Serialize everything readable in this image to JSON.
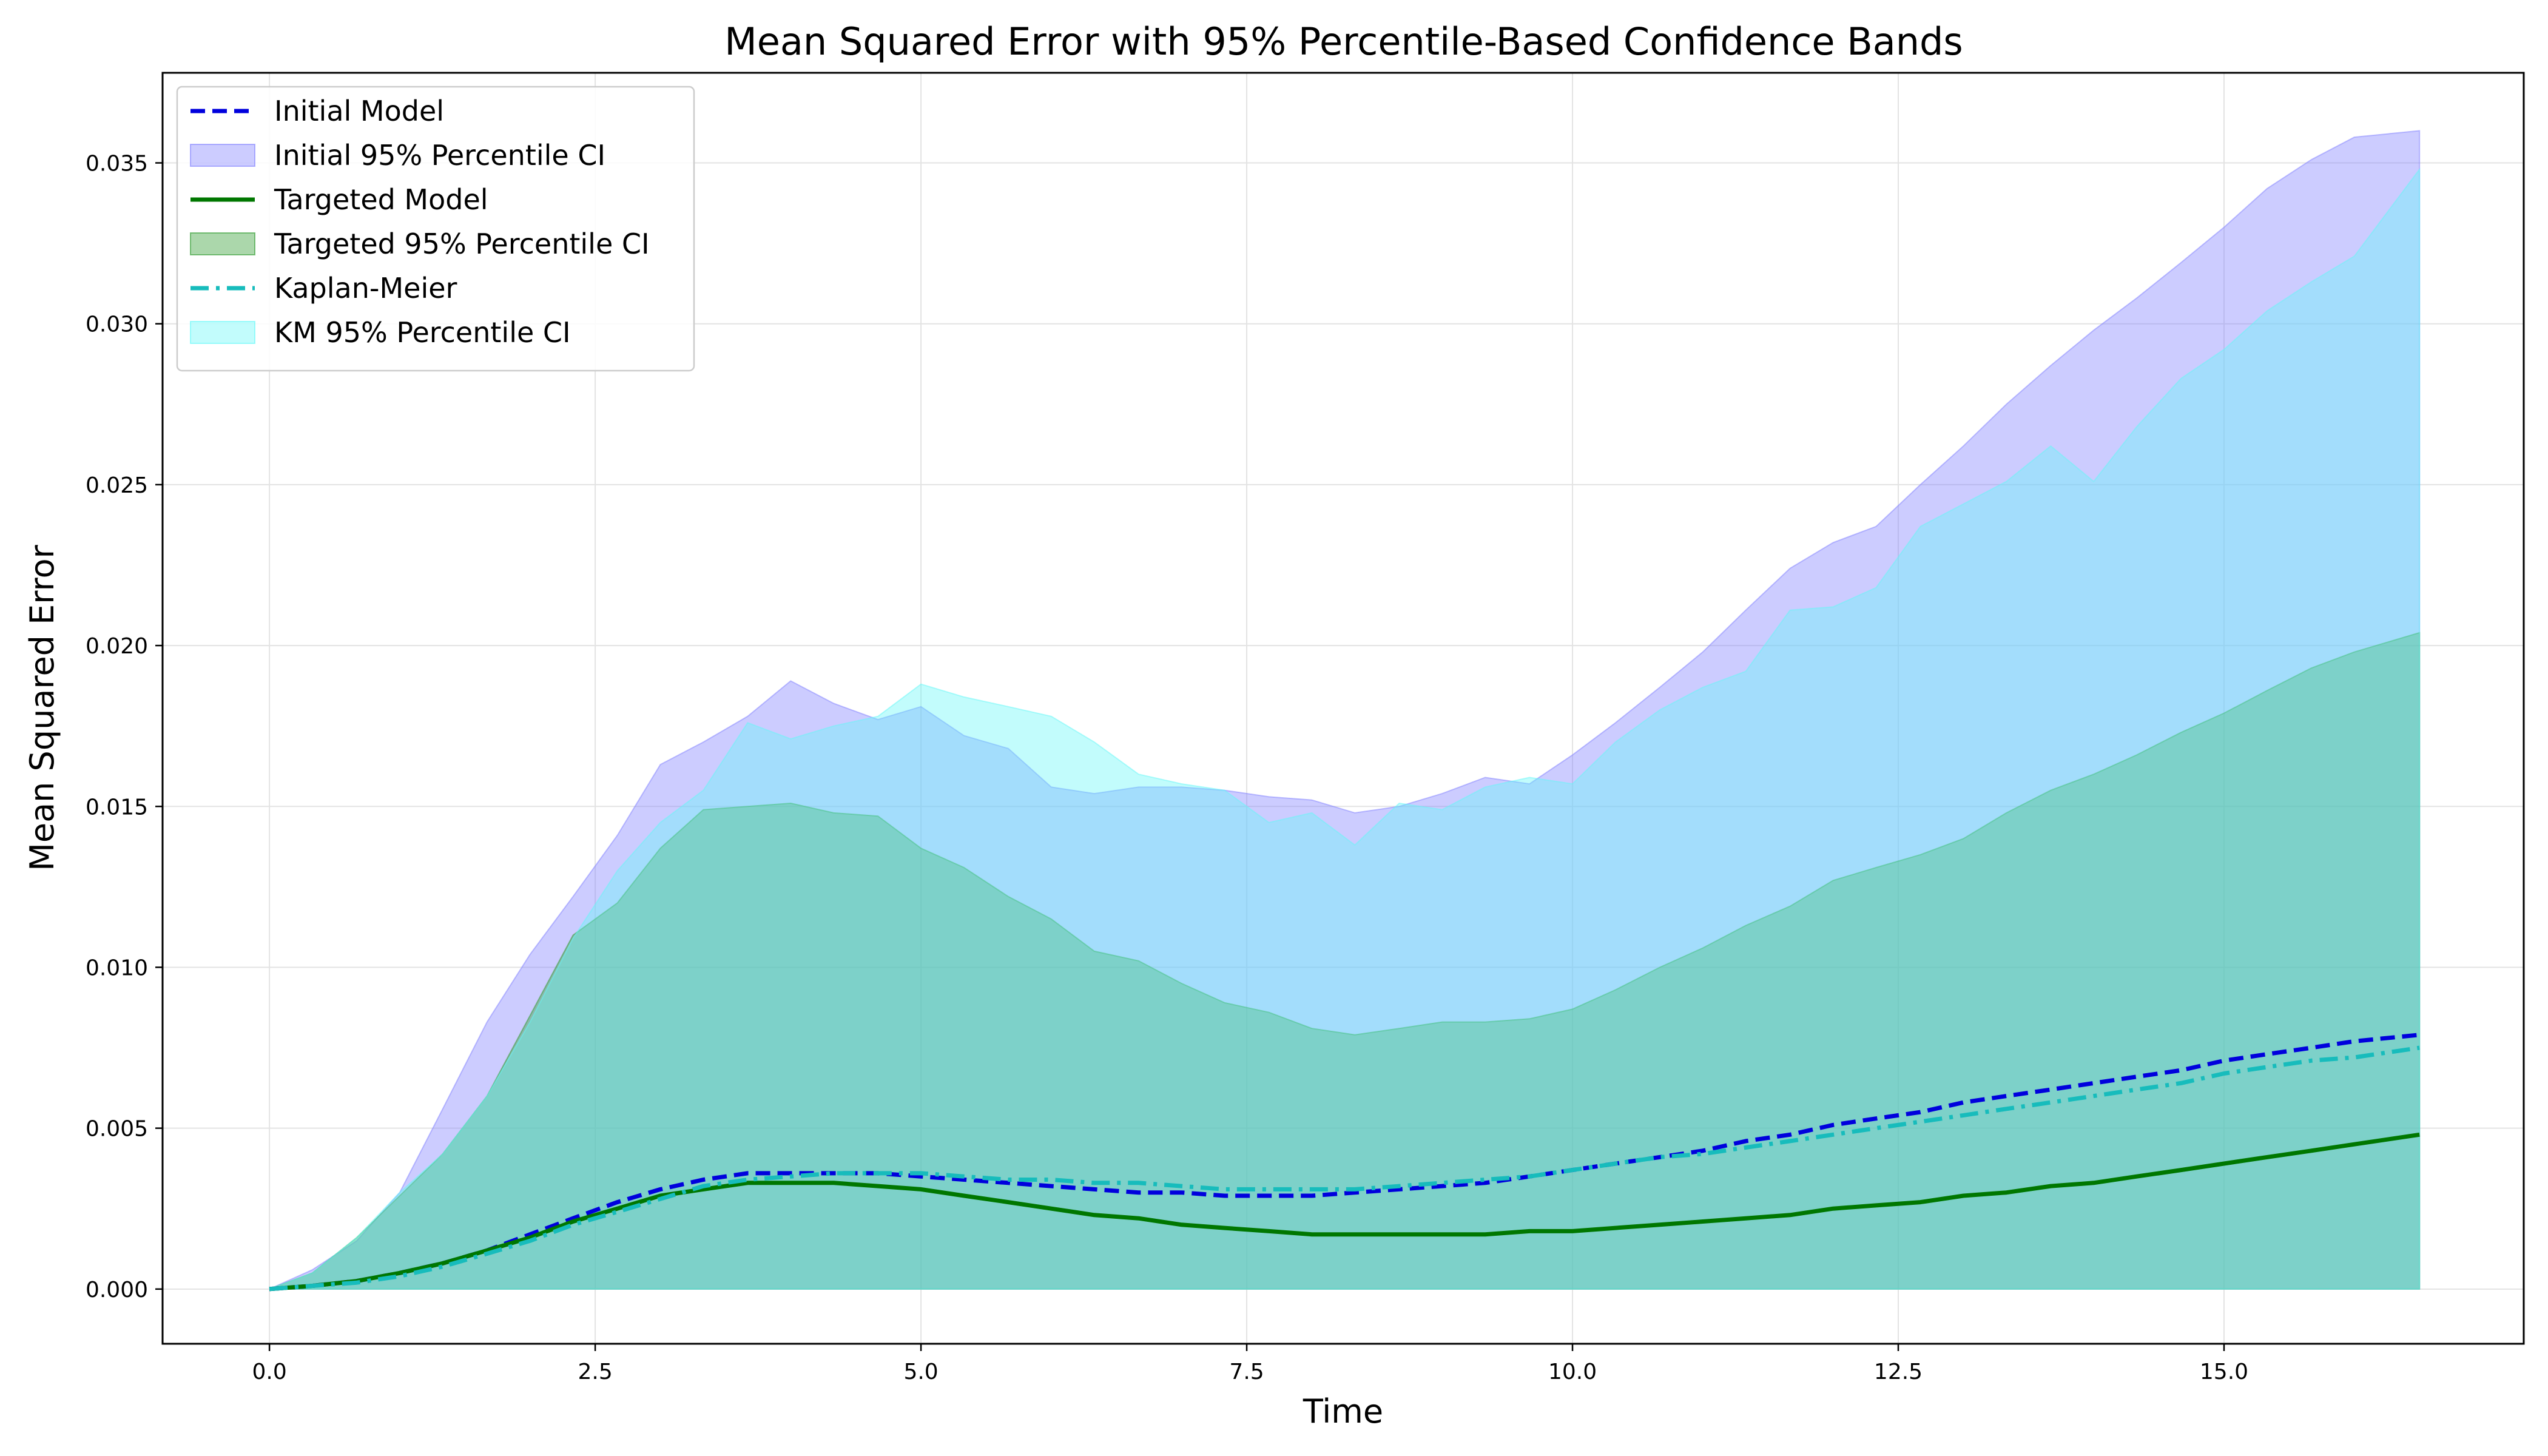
{
  "chart_data": {
    "type": "line",
    "title": "Mean Squared Error with 95% Percentile-Based Confidence Bands",
    "xlabel": "Time",
    "ylabel": "Mean Squared Error",
    "xlim": [
      -0.82,
      17.3
    ],
    "ylim": [
      -0.0017,
      0.0378
    ],
    "grid": true,
    "legend_position": "top-left",
    "x": [
      0.0,
      0.33,
      0.67,
      1.0,
      1.33,
      1.67,
      2.0,
      2.33,
      2.67,
      3.0,
      3.33,
      3.67,
      4.0,
      4.33,
      4.67,
      5.0,
      5.33,
      5.67,
      6.0,
      6.33,
      6.67,
      7.0,
      7.33,
      7.67,
      8.0,
      8.33,
      8.67,
      9.0,
      9.33,
      9.67,
      10.0,
      10.33,
      10.67,
      11.0,
      11.33,
      11.67,
      12.0,
      12.33,
      12.67,
      13.0,
      13.33,
      13.67,
      14.0,
      14.33,
      14.67,
      15.0,
      15.33,
      15.67,
      16.0,
      16.5
    ],
    "x_ticks": [
      0.0,
      2.5,
      5.0,
      7.5,
      10.0,
      12.5,
      15.0
    ],
    "x_tick_labels": [
      "0.0",
      "2.5",
      "5.0",
      "7.5",
      "10.0",
      "12.5",
      "15.0"
    ],
    "y_ticks": [
      0.0,
      0.005,
      0.01,
      0.015,
      0.02,
      0.025,
      0.03,
      0.035
    ],
    "y_tick_labels": [
      "0.000",
      "0.005",
      "0.010",
      "0.015",
      "0.020",
      "0.025",
      "0.030",
      "0.035"
    ],
    "series": [
      {
        "name": "Initial Model",
        "kind": "line",
        "color": "#0000dd",
        "style": "dashed",
        "values": [
          0.0,
          0.0001,
          0.00025,
          0.0005,
          0.0008,
          0.0012,
          0.0017,
          0.0022,
          0.0027,
          0.0031,
          0.0034,
          0.0036,
          0.0036,
          0.0036,
          0.0036,
          0.0035,
          0.0034,
          0.0033,
          0.0032,
          0.0031,
          0.003,
          0.003,
          0.0029,
          0.0029,
          0.0029,
          0.003,
          0.0031,
          0.0032,
          0.0033,
          0.0035,
          0.0037,
          0.0039,
          0.0041,
          0.0043,
          0.0046,
          0.0048,
          0.0051,
          0.0053,
          0.0055,
          0.0058,
          0.006,
          0.0062,
          0.0064,
          0.0066,
          0.0068,
          0.0071,
          0.0073,
          0.0075,
          0.0077,
          0.0079
        ]
      },
      {
        "name": "Initial 95% Percentile CI",
        "kind": "band",
        "color": "#8080ff",
        "upper": [
          0.0,
          0.0006,
          0.0015,
          0.003,
          0.0056,
          0.0083,
          0.0104,
          0.0122,
          0.0141,
          0.0163,
          0.017,
          0.0178,
          0.0189,
          0.0182,
          0.0177,
          0.0181,
          0.0172,
          0.0168,
          0.0156,
          0.0154,
          0.0156,
          0.0156,
          0.0155,
          0.0153,
          0.0152,
          0.0148,
          0.015,
          0.0154,
          0.0159,
          0.0157,
          0.0166,
          0.0176,
          0.0187,
          0.0198,
          0.0211,
          0.0224,
          0.0232,
          0.0237,
          0.025,
          0.0262,
          0.0275,
          0.0287,
          0.0298,
          0.0308,
          0.0319,
          0.033,
          0.0342,
          0.0351,
          0.0358,
          0.036
        ],
        "lower": [
          0.0,
          0.0,
          0.0,
          0.0,
          0.0,
          0.0,
          0.0,
          0.0,
          0.0,
          0.0,
          0.0,
          0.0,
          0.0,
          0.0,
          0.0,
          0.0,
          0.0,
          0.0,
          0.0,
          0.0,
          0.0,
          0.0,
          0.0,
          0.0,
          0.0,
          0.0,
          0.0,
          0.0,
          0.0,
          0.0,
          0.0,
          0.0,
          0.0,
          0.0,
          0.0,
          0.0,
          0.0,
          0.0,
          0.0,
          0.0,
          0.0,
          0.0,
          0.0,
          0.0,
          0.0,
          0.0,
          0.0,
          0.0,
          0.0,
          0.0
        ]
      },
      {
        "name": "Targeted Model",
        "kind": "line",
        "color": "#007700",
        "style": "solid",
        "values": [
          0.0,
          0.0001,
          0.00025,
          0.0005,
          0.0008,
          0.0012,
          0.0016,
          0.0021,
          0.0025,
          0.0029,
          0.0031,
          0.0033,
          0.0033,
          0.0033,
          0.0032,
          0.0031,
          0.0029,
          0.0027,
          0.0025,
          0.0023,
          0.0022,
          0.002,
          0.0019,
          0.0018,
          0.0017,
          0.0017,
          0.0017,
          0.0017,
          0.0017,
          0.0018,
          0.0018,
          0.0019,
          0.002,
          0.0021,
          0.0022,
          0.0023,
          0.0025,
          0.0026,
          0.0027,
          0.0029,
          0.003,
          0.0032,
          0.0033,
          0.0035,
          0.0037,
          0.0039,
          0.0041,
          0.0043,
          0.0045,
          0.0048
        ]
      },
      {
        "name": "Targeted 95% Percentile CI",
        "kind": "band",
        "color": "#2e9b2e",
        "upper": [
          0.0,
          0.0005,
          0.0016,
          0.0029,
          0.0042,
          0.006,
          0.0085,
          0.011,
          0.012,
          0.0137,
          0.0149,
          0.015,
          0.0151,
          0.0148,
          0.0147,
          0.0137,
          0.0131,
          0.0122,
          0.0115,
          0.0105,
          0.0102,
          0.0095,
          0.0089,
          0.0086,
          0.0081,
          0.0079,
          0.0081,
          0.0083,
          0.0083,
          0.0084,
          0.0087,
          0.0093,
          0.01,
          0.0106,
          0.0113,
          0.0119,
          0.0127,
          0.0131,
          0.0135,
          0.014,
          0.0148,
          0.0155,
          0.016,
          0.0166,
          0.0173,
          0.0179,
          0.0186,
          0.0193,
          0.0198,
          0.0204
        ],
        "lower": [
          0.0,
          0.0,
          0.0,
          0.0,
          0.0,
          0.0,
          0.0,
          0.0,
          0.0,
          0.0,
          0.0,
          0.0,
          0.0,
          0.0,
          0.0,
          0.0,
          0.0,
          0.0,
          0.0,
          0.0,
          0.0,
          0.0,
          0.0,
          0.0,
          0.0,
          0.0,
          0.0,
          0.0,
          0.0,
          0.0,
          0.0,
          0.0,
          0.0,
          0.0,
          0.0,
          0.0,
          0.0,
          0.0,
          0.0,
          0.0,
          0.0,
          0.0,
          0.0,
          0.0,
          0.0,
          0.0,
          0.0,
          0.0,
          0.0,
          0.0
        ]
      },
      {
        "name": "Kaplan-Meier",
        "kind": "line",
        "color": "#17bcbc",
        "style": "dashdot",
        "values": [
          0.0,
          0.0001,
          0.0002,
          0.0004,
          0.0007,
          0.0011,
          0.0015,
          0.002,
          0.0024,
          0.0028,
          0.0032,
          0.0034,
          0.0035,
          0.0036,
          0.0036,
          0.0036,
          0.0035,
          0.0034,
          0.0034,
          0.0033,
          0.0033,
          0.0032,
          0.0031,
          0.0031,
          0.0031,
          0.0031,
          0.0032,
          0.0033,
          0.0034,
          0.0035,
          0.0037,
          0.0039,
          0.0041,
          0.0042,
          0.0044,
          0.0046,
          0.0048,
          0.005,
          0.0052,
          0.0054,
          0.0056,
          0.0058,
          0.006,
          0.0062,
          0.0064,
          0.0067,
          0.0069,
          0.0071,
          0.0072,
          0.0075
        ]
      },
      {
        "name": "KM 95% Percentile CI",
        "kind": "band",
        "color": "#66f8f8",
        "upper": [
          0.0,
          0.0005,
          0.0016,
          0.003,
          0.0042,
          0.006,
          0.0083,
          0.0109,
          0.013,
          0.0145,
          0.0155,
          0.0176,
          0.0171,
          0.0175,
          0.0178,
          0.0188,
          0.0184,
          0.0181,
          0.0178,
          0.017,
          0.016,
          0.0157,
          0.0155,
          0.0145,
          0.0148,
          0.0138,
          0.0151,
          0.0149,
          0.0156,
          0.0159,
          0.0157,
          0.017,
          0.018,
          0.0187,
          0.0192,
          0.0211,
          0.0212,
          0.0218,
          0.0237,
          0.0244,
          0.0251,
          0.0262,
          0.0251,
          0.0268,
          0.0283,
          0.0292,
          0.0304,
          0.0313,
          0.0321,
          0.0348
        ],
        "lower": [
          0.0,
          0.0,
          0.0,
          0.0,
          0.0,
          0.0,
          0.0,
          0.0,
          0.0,
          0.0,
          0.0,
          0.0,
          0.0,
          0.0,
          0.0,
          0.0,
          0.0,
          0.0,
          0.0,
          0.0,
          0.0,
          0.0,
          0.0,
          0.0,
          0.0,
          0.0,
          0.0,
          0.0,
          0.0,
          0.0,
          0.0,
          0.0,
          0.0,
          0.0,
          0.0,
          0.0,
          0.0,
          0.0,
          0.0,
          0.0,
          0.0,
          0.0,
          0.0,
          0.0,
          0.0,
          0.0,
          0.0,
          0.0,
          0.0,
          0.0
        ]
      }
    ]
  }
}
